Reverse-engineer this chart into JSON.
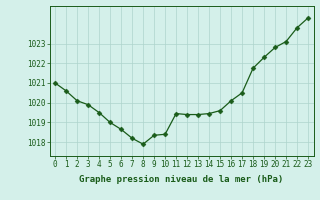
{
  "x": [
    0,
    1,
    2,
    3,
    4,
    5,
    6,
    7,
    8,
    9,
    10,
    11,
    12,
    13,
    14,
    15,
    16,
    17,
    18,
    19,
    20,
    21,
    22,
    23
  ],
  "y": [
    1021.0,
    1020.6,
    1020.1,
    1019.9,
    1019.5,
    1019.0,
    1018.65,
    1018.2,
    1017.9,
    1018.35,
    1018.4,
    1019.45,
    1019.4,
    1019.4,
    1019.45,
    1019.6,
    1020.1,
    1020.5,
    1021.75,
    1022.3,
    1022.8,
    1023.1,
    1023.8,
    1024.3
  ],
  "line_color": "#1a5c1a",
  "marker": "D",
  "marker_size": 2.5,
  "bg_color": "#d4f0ea",
  "grid_color": "#aed4cc",
  "xlabel": "Graphe pression niveau de la mer (hPa)",
  "xlabel_fontsize": 6.5,
  "ylabel_ticks": [
    1018,
    1019,
    1020,
    1021,
    1022,
    1023
  ],
  "ylim": [
    1017.3,
    1024.9
  ],
  "xlim": [
    -0.5,
    23.5
  ],
  "tick_fontsize": 5.5,
  "tick_color": "#1a5c1a",
  "spine_color": "#1a5c1a",
  "linewidth": 0.9
}
